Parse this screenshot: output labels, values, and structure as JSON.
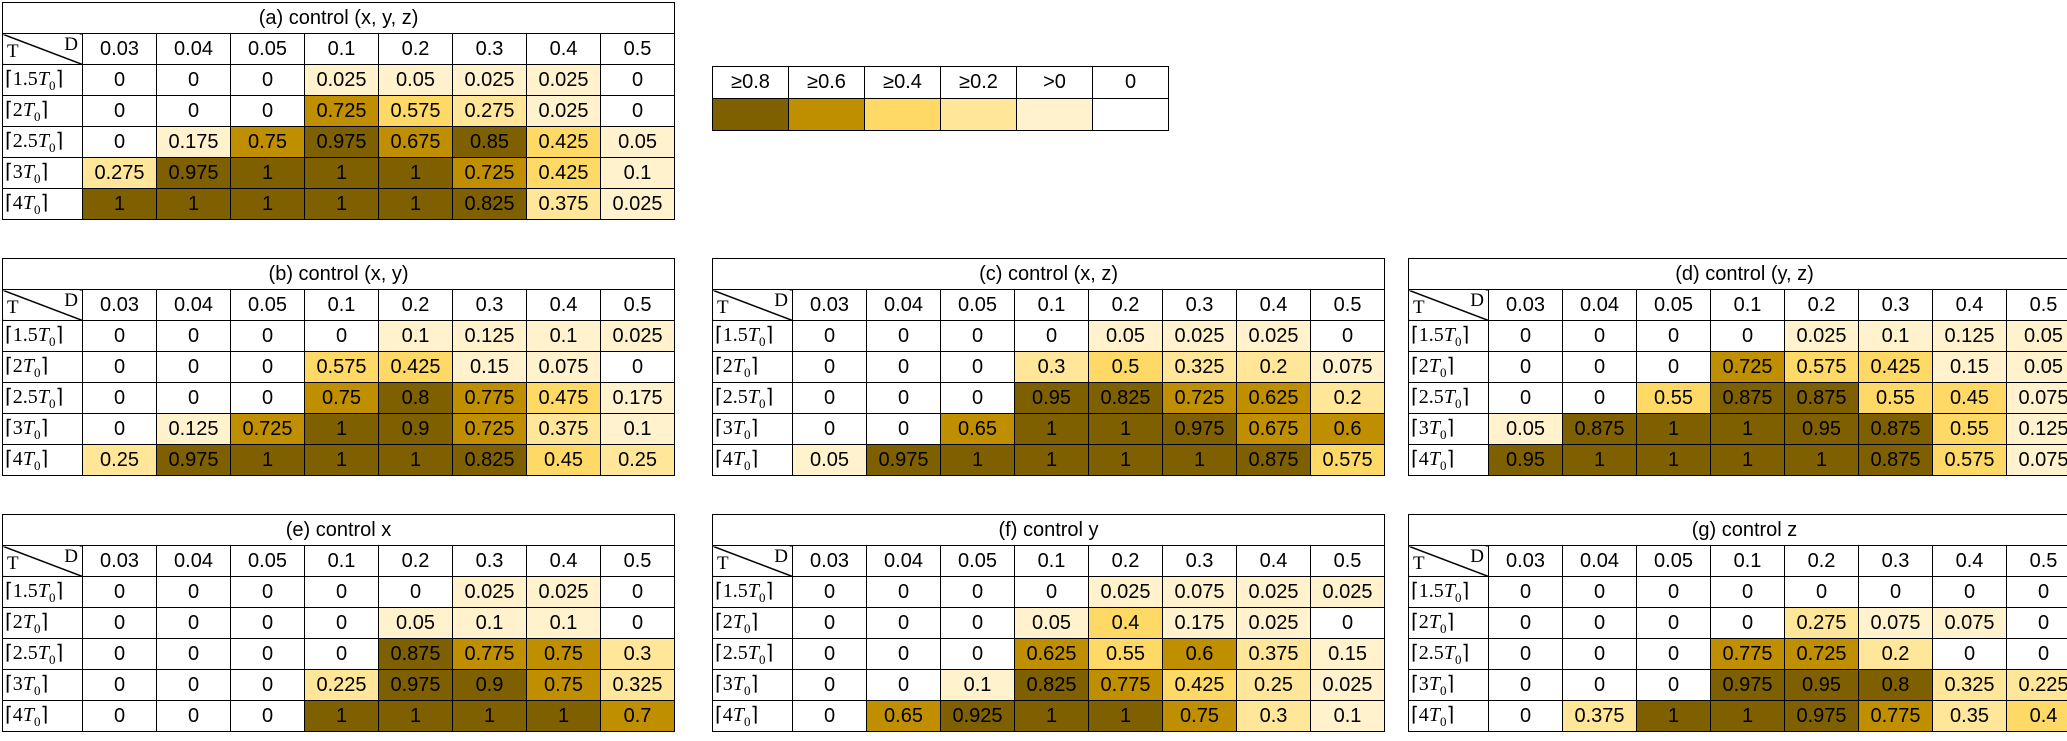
{
  "chart_data": [
    {
      "type": "heatmap",
      "title": "(a) control (x, y, z)",
      "corner_row_label": "T",
      "corner_col_label": "D",
      "columns": [
        "0.03",
        "0.04",
        "0.05",
        "0.1",
        "0.2",
        "0.3",
        "0.4",
        "0.5"
      ],
      "rows": [
        "[1.5T0]",
        "[2T0]",
        "[2.5T0]",
        "[3T0]",
        "[4T0]"
      ],
      "values": [
        [
          0,
          0,
          0,
          0.025,
          0.05,
          0.025,
          0.025,
          0
        ],
        [
          0,
          0,
          0,
          0.725,
          0.575,
          0.275,
          0.025,
          0
        ],
        [
          0,
          0.175,
          0.75,
          0.975,
          0.675,
          0.85,
          0.425,
          0.05
        ],
        [
          0.275,
          0.975,
          1,
          1,
          1,
          0.725,
          0.425,
          0.1
        ],
        [
          1,
          1,
          1,
          1,
          1,
          0.825,
          0.375,
          0.025
        ]
      ]
    },
    {
      "type": "heatmap",
      "title": "(b) control (x, y)",
      "corner_row_label": "T",
      "corner_col_label": "D",
      "columns": [
        "0.03",
        "0.04",
        "0.05",
        "0.1",
        "0.2",
        "0.3",
        "0.4",
        "0.5"
      ],
      "rows": [
        "[1.5T0]",
        "[2T0]",
        "[2.5T0]",
        "[3T0]",
        "[4T0]"
      ],
      "values": [
        [
          0,
          0,
          0,
          0,
          0.1,
          0.125,
          0.1,
          0.025
        ],
        [
          0,
          0,
          0,
          0.575,
          0.425,
          0.15,
          0.075,
          0
        ],
        [
          0,
          0,
          0,
          0.75,
          0.8,
          0.775,
          0.475,
          0.175
        ],
        [
          0,
          0.125,
          0.725,
          1,
          0.9,
          0.725,
          0.375,
          0.1
        ],
        [
          0.25,
          0.975,
          1,
          1,
          1,
          0.825,
          0.45,
          0.25
        ]
      ]
    },
    {
      "type": "heatmap",
      "title": "(c) control (x, z)",
      "corner_row_label": "T",
      "corner_col_label": "D",
      "columns": [
        "0.03",
        "0.04",
        "0.05",
        "0.1",
        "0.2",
        "0.3",
        "0.4",
        "0.5"
      ],
      "rows": [
        "[1.5T0]",
        "[2T0]",
        "[2.5T0]",
        "[3T0]",
        "[4T0]"
      ],
      "values": [
        [
          0,
          0,
          0,
          0,
          0.05,
          0.025,
          0.025,
          0
        ],
        [
          0,
          0,
          0,
          0.3,
          0.5,
          0.325,
          0.2,
          0.075
        ],
        [
          0,
          0,
          0,
          0.95,
          0.825,
          0.725,
          0.625,
          0.2
        ],
        [
          0,
          0,
          0.65,
          1,
          1,
          0.975,
          0.675,
          0.6
        ],
        [
          0.05,
          0.975,
          1,
          1,
          1,
          1,
          0.875,
          0.575
        ]
      ]
    },
    {
      "type": "heatmap",
      "title": "(d) control (y, z)",
      "corner_row_label": "T",
      "corner_col_label": "D",
      "columns": [
        "0.03",
        "0.04",
        "0.05",
        "0.1",
        "0.2",
        "0.3",
        "0.4",
        "0.5"
      ],
      "rows": [
        "[1.5T0]",
        "[2T0]",
        "[2.5T0]",
        "[3T0]",
        "[4T0]"
      ],
      "values": [
        [
          0,
          0,
          0,
          0,
          0.025,
          0.1,
          0.125,
          0.05
        ],
        [
          0,
          0,
          0,
          0.725,
          0.575,
          0.425,
          0.15,
          0.05
        ],
        [
          0,
          0,
          0.55,
          0.875,
          0.875,
          0.55,
          0.45,
          0.075
        ],
        [
          0.05,
          0.875,
          1,
          1,
          0.95,
          0.875,
          0.55,
          0.125
        ],
        [
          0.95,
          1,
          1,
          1,
          1,
          0.875,
          0.575,
          0.075
        ]
      ]
    },
    {
      "type": "heatmap",
      "title": "(e) control x",
      "corner_row_label": "T",
      "corner_col_label": "D",
      "columns": [
        "0.03",
        "0.04",
        "0.05",
        "0.1",
        "0.2",
        "0.3",
        "0.4",
        "0.5"
      ],
      "rows": [
        "[1.5T0]",
        "[2T0]",
        "[2.5T0]",
        "[3T0]",
        "[4T0]"
      ],
      "values": [
        [
          0,
          0,
          0,
          0,
          0,
          0.025,
          0.025,
          0
        ],
        [
          0,
          0,
          0,
          0,
          0.05,
          0.1,
          0.1,
          0
        ],
        [
          0,
          0,
          0,
          0,
          0.875,
          0.775,
          0.75,
          0.3
        ],
        [
          0,
          0,
          0,
          0.225,
          0.975,
          0.9,
          0.75,
          0.325
        ],
        [
          0,
          0,
          0,
          1,
          1,
          1,
          1,
          0.7
        ]
      ]
    },
    {
      "type": "heatmap",
      "title": "(f) control y",
      "corner_row_label": "T",
      "corner_col_label": "D",
      "columns": [
        "0.03",
        "0.04",
        "0.05",
        "0.1",
        "0.2",
        "0.3",
        "0.4",
        "0.5"
      ],
      "rows": [
        "[1.5T0]",
        "[2T0]",
        "[2.5T0]",
        "[3T0]",
        "[4T0]"
      ],
      "values": [
        [
          0,
          0,
          0,
          0,
          0.025,
          0.075,
          0.025,
          0.025
        ],
        [
          0,
          0,
          0,
          0.05,
          0.4,
          0.175,
          0.025,
          0
        ],
        [
          0,
          0,
          0,
          0.625,
          0.55,
          0.6,
          0.375,
          0.15
        ],
        [
          0,
          0,
          0.1,
          0.825,
          0.775,
          0.425,
          0.25,
          0.025
        ],
        [
          0,
          0.65,
          0.925,
          1,
          1,
          0.75,
          0.3,
          0.1
        ]
      ]
    },
    {
      "type": "heatmap",
      "title": "(g) control z",
      "corner_row_label": "T",
      "corner_col_label": "D",
      "columns": [
        "0.03",
        "0.04",
        "0.05",
        "0.1",
        "0.2",
        "0.3",
        "0.4",
        "0.5"
      ],
      "rows": [
        "[1.5T0]",
        "[2T0]",
        "[2.5T0]",
        "[3T0]",
        "[4T0]"
      ],
      "values": [
        [
          0,
          0,
          0,
          0,
          0,
          0,
          0,
          0
        ],
        [
          0,
          0,
          0,
          0,
          0.275,
          0.075,
          0.075,
          0
        ],
        [
          0,
          0,
          0,
          0.775,
          0.725,
          0.2,
          0,
          0
        ],
        [
          0,
          0,
          0,
          0.975,
          0.95,
          0.8,
          0.325,
          0.225
        ],
        [
          0,
          0.375,
          1,
          1,
          0.975,
          0.775,
          0.35,
          0.4
        ]
      ]
    }
  ],
  "legend": {
    "entries": [
      {
        "label": "≥0.8",
        "color": "#7f6000"
      },
      {
        "label": "≥0.6",
        "color": "#bf8f00"
      },
      {
        "label": "≥0.4",
        "color": "#ffd966"
      },
      {
        "label": "≥0.2",
        "color": "#ffe699"
      },
      {
        "label": ">0",
        "color": "#fff2cc"
      },
      {
        "label": "0",
        "color": "#ffffff"
      }
    ]
  }
}
